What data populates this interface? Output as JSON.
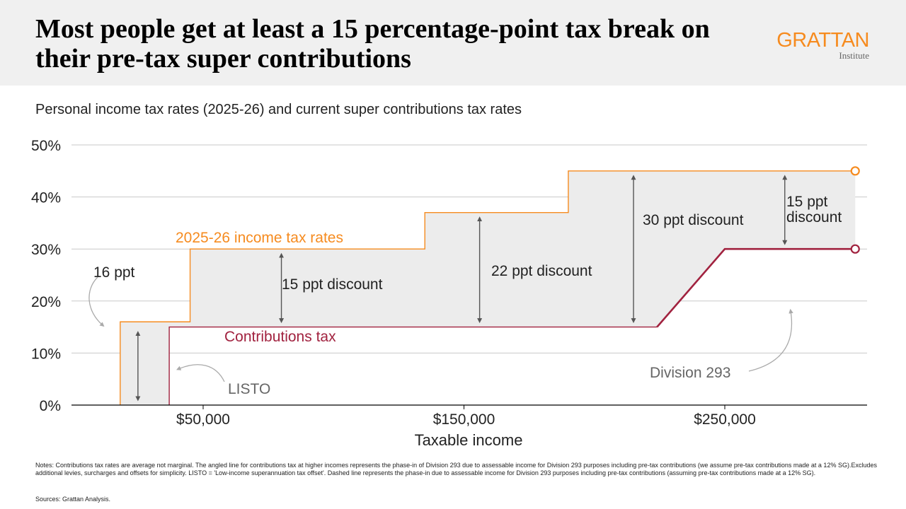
{
  "header": {
    "title": "Most people get at least a 15 percentage-point tax break on their pre-tax super contributions",
    "logo": "GRATTAN",
    "logo_sub": "Institute"
  },
  "chart_data": {
    "type": "line",
    "subtitle": "Personal income tax rates (2025-26) and current super contributions tax rates",
    "xlabel": "Taxable income",
    "ylabel": "",
    "xlim": [
      0,
      305000
    ],
    "ylim": [
      0,
      50
    ],
    "x_ticks": [
      {
        "value": 50000,
        "label": "$50,000"
      },
      {
        "value": 150000,
        "label": "$150,000"
      },
      {
        "value": 250000,
        "label": "$250,000"
      }
    ],
    "y_ticks": [
      {
        "value": 0,
        "label": "0%"
      },
      {
        "value": 10,
        "label": "10%"
      },
      {
        "value": 20,
        "label": "20%"
      },
      {
        "value": 30,
        "label": "30%"
      },
      {
        "value": 40,
        "label": "40%"
      },
      {
        "value": 50,
        "label": "50%"
      }
    ],
    "grid": true,
    "series": [
      {
        "name": "2025-26 income tax rates",
        "color": "#f68b1f",
        "points": [
          [
            18200,
            0
          ],
          [
            18200,
            16
          ],
          [
            45000,
            16
          ],
          [
            45000,
            30
          ],
          [
            135000,
            30
          ],
          [
            135000,
            37
          ],
          [
            190000,
            37
          ],
          [
            190000,
            45
          ],
          [
            300000,
            45
          ]
        ]
      },
      {
        "name": "Contributions tax",
        "color": "#a1223f",
        "points": [
          [
            37000,
            0
          ],
          [
            37000,
            15
          ],
          [
            224000,
            15
          ],
          [
            250000,
            30
          ],
          [
            300000,
            30
          ]
        ]
      }
    ],
    "fill_color": "#ececec",
    "annotations": [
      {
        "text": "16 ppt",
        "x": 25000,
        "from": 0,
        "to": 15
      },
      {
        "text": "15 ppt discount",
        "x": 80000,
        "from": 15,
        "to": 30
      },
      {
        "text": "22 ppt discount",
        "x": 156000,
        "from": 15,
        "to": 37
      },
      {
        "text": "30 ppt discount",
        "x": 215000,
        "from": 15,
        "to": 45
      },
      {
        "text": "15 ppt discount",
        "x": 273000,
        "from": 30,
        "to": 45
      }
    ],
    "callouts": {
      "listo": "LISTO",
      "div293": "Division 293"
    }
  },
  "notes": "Notes: Contributions tax rates are average not marginal. The angled line for contributions tax at higher incomes represents the phase-in of Division 293 due to assessable income for Division 293 purposes including pre-tax contributions (we assume pre-tax contributions made at a 12% SG).Excludes additional levies, surcharges and offsets for simplicity. LISTO = 'Low-income superannuation tax offset'. Dashed line represents the phase-in due to assessable income for Division 293 purposes including pre-tax contributions (assuming pre-tax contributions made at a 12% SG).",
  "sources": "Sources: Grattan Analysis."
}
